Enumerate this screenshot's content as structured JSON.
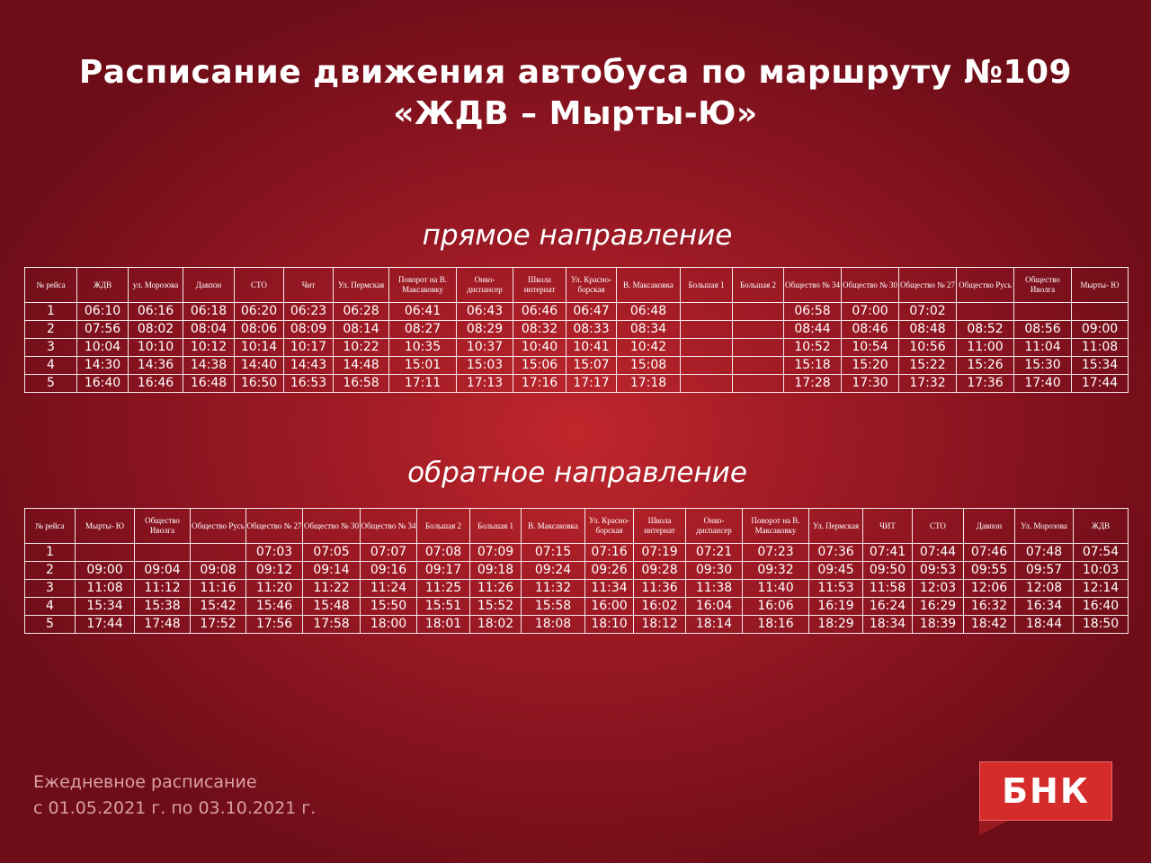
{
  "title": {
    "line1": "Расписание движения автобуса по маршруту №109",
    "line2": "«ЖДВ – Мырты-Ю»"
  },
  "forward": {
    "heading": "прямое направление",
    "columns": [
      "№ рейса",
      "ЖДВ",
      "ул. Морозова",
      "Давпон",
      "СТО",
      "Чит",
      "Ул. Пермская",
      "Поворот на В. Максаковку",
      "Онко- диспансер",
      "Школа интернат",
      "Ул. Красно- борская",
      "В. Максаковка",
      "Большая 1",
      "Большая 2",
      "Общество № 34",
      "Общество № 30",
      "Общество № 27",
      "Общество Русь",
      "Общество Иволга",
      "Мырты- Ю"
    ],
    "rows": [
      [
        "1",
        "06:10",
        "06:16",
        "06:18",
        "06:20",
        "06:23",
        "06:28",
        "06:41",
        "06:43",
        "06:46",
        "06:47",
        "06:48",
        "",
        "",
        "06:58",
        "07:00",
        "07:02",
        "",
        "",
        ""
      ],
      [
        "2",
        "07:56",
        "08:02",
        "08:04",
        "08:06",
        "08:09",
        "08:14",
        "08:27",
        "08:29",
        "08:32",
        "08:33",
        "08:34",
        "",
        "",
        "08:44",
        "08:46",
        "08:48",
        "08:52",
        "08:56",
        "09:00"
      ],
      [
        "3",
        "10:04",
        "10:10",
        "10:12",
        "10:14",
        "10:17",
        "10:22",
        "10:35",
        "10:37",
        "10:40",
        "10:41",
        "10:42",
        "",
        "",
        "10:52",
        "10:54",
        "10:56",
        "11:00",
        "11:04",
        "11:08"
      ],
      [
        "4",
        "14:30",
        "14:36",
        "14:38",
        "14:40",
        "14:43",
        "14:48",
        "15:01",
        "15:03",
        "15:06",
        "15:07",
        "15:08",
        "",
        "",
        "15:18",
        "15:20",
        "15:22",
        "15:26",
        "15:30",
        "15:34"
      ],
      [
        "5",
        "16:40",
        "16:46",
        "16:48",
        "16:50",
        "16:53",
        "16:58",
        "17:11",
        "17:13",
        "17:16",
        "17:17",
        "17:18",
        "",
        "",
        "17:28",
        "17:30",
        "17:32",
        "17:36",
        "17:40",
        "17:44"
      ]
    ]
  },
  "backward": {
    "heading": "обратное направление",
    "columns": [
      "№ рейса",
      "Мырты- Ю",
      "Общество Иволга",
      "Общество Русь",
      "Общество № 27",
      "Общество № 30",
      "Общество № 34",
      "Большая 2",
      "Большая 1",
      "В. Максаковка",
      "Ул. Красно- борская",
      "Школа интернат",
      "Онко- диспансер",
      "Поворот на В. Максаковку",
      "Ул. Пермская",
      "ЧИТ",
      "СТО",
      "Давпон",
      "Ул. Морозова",
      "ЖДВ"
    ],
    "rows": [
      [
        "1",
        "",
        "",
        "",
        "07:03",
        "07:05",
        "07:07",
        "07:08",
        "07:09",
        "07:15",
        "07:16",
        "07:19",
        "07:21",
        "07:23",
        "07:36",
        "07:41",
        "07:44",
        "07:46",
        "07:48",
        "07:54"
      ],
      [
        "2",
        "09:00",
        "09:04",
        "09:08",
        "09:12",
        "09:14",
        "09:16",
        "09:17",
        "09:18",
        "09:24",
        "09:26",
        "09:28",
        "09:30",
        "09:32",
        "09:45",
        "09:50",
        "09:53",
        "09:55",
        "09:57",
        "10:03"
      ],
      [
        "3",
        "11:08",
        "11:12",
        "11:16",
        "11:20",
        "11:22",
        "11:24",
        "11:25",
        "11:26",
        "11:32",
        "11:34",
        "11:36",
        "11:38",
        "11:40",
        "11:53",
        "11:58",
        "12:03",
        "12:06",
        "12:08",
        "12:14"
      ],
      [
        "4",
        "15:34",
        "15:38",
        "15:42",
        "15:46",
        "15:48",
        "15:50",
        "15:51",
        "15:52",
        "15:58",
        "16:00",
        "16:02",
        "16:04",
        "16:06",
        "16:19",
        "16:24",
        "16:29",
        "16:32",
        "16:34",
        "16:40"
      ],
      [
        "5",
        "17:44",
        "17:48",
        "17:52",
        "17:56",
        "17:58",
        "18:00",
        "18:01",
        "18:02",
        "18:08",
        "18:10",
        "18:12",
        "18:14",
        "18:16",
        "18:29",
        "18:34",
        "18:39",
        "18:42",
        "18:44",
        "18:50"
      ]
    ]
  },
  "footer": {
    "line1": "Ежедневное расписание",
    "line2": "с 01.05.2021 г. по 03.10.2021 г."
  },
  "logo": {
    "text": "БНК",
    "color": "#d52b2b"
  }
}
